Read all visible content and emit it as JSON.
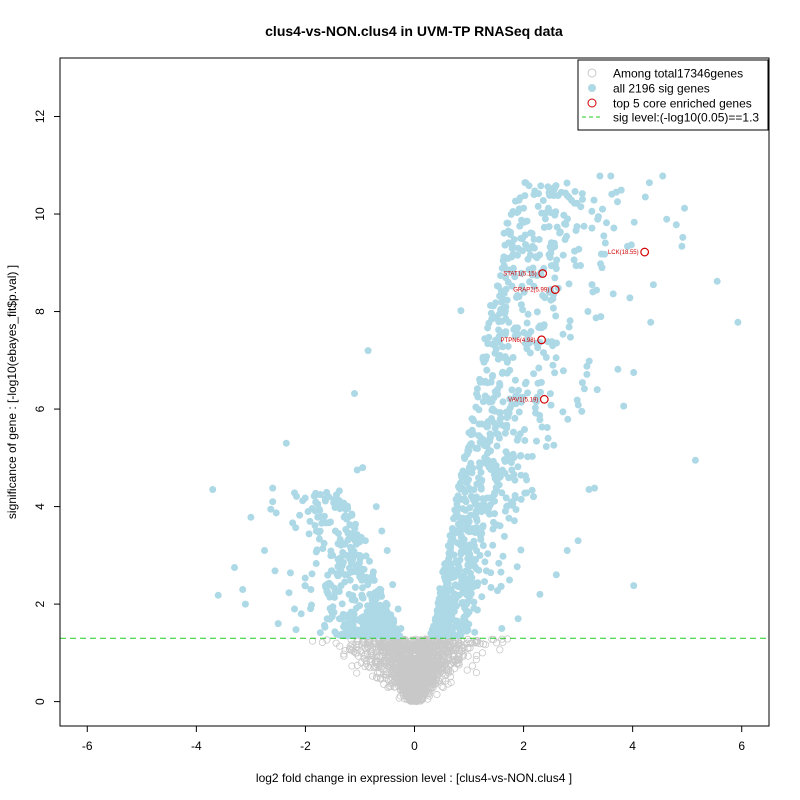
{
  "chart_data": {
    "type": "scatter",
    "title": "clus4-vs-NON.clus4 in UVM-TP RNASeq data",
    "xlabel": "log2 fold change in expression level : [clus4-vs-NON.clus4 ]",
    "ylabel": "significance of gene : [-log10(ebayes_fit$p.val) ]",
    "xlim": [
      -6.5,
      6.5
    ],
    "ylim": [
      -0.5,
      13.2
    ],
    "xticks": [
      -6,
      -4,
      -2,
      0,
      2,
      4,
      6
    ],
    "yticks": [
      0,
      2,
      4,
      6,
      8,
      10,
      12
    ],
    "sig_threshold": 1.3,
    "colors": {
      "nonsig": "#c8c8c8",
      "sig": "#add8e6",
      "core": "#d10000",
      "threshold": "#22cc22"
    },
    "legend": {
      "position": "top-right",
      "entries": [
        "Among total17346genes",
        "all 2196 sig genes",
        "top 5 core enriched genes",
        "sig level:(-log10(0.05)==1.3"
      ]
    },
    "core_genes": [
      {
        "label": "LCK(18.55)",
        "x": 4.22,
        "y": 9.22
      },
      {
        "label": "STAT1(5.15)",
        "x": 2.35,
        "y": 8.78
      },
      {
        "label": "GRAP2(5.99)",
        "x": 2.58,
        "y": 8.45
      },
      {
        "label": "PTPN6(4.98)",
        "x": 2.33,
        "y": 7.42
      },
      {
        "label": "VAV1(5.19)",
        "x": 2.38,
        "y": 6.2
      }
    ],
    "sig_genes_sample": [
      [
        5.93,
        7.78
      ],
      [
        5.55,
        8.62
      ],
      [
        5.15,
        4.95
      ],
      [
        4.92,
        9.52
      ],
      [
        4.95,
        10.12
      ],
      [
        4.8,
        9.78
      ],
      [
        4.55,
        10.78
      ],
      [
        4.38,
        8.55
      ],
      [
        4.33,
        7.78
      ],
      [
        4.2,
        11.12
      ],
      [
        4.02,
        6.75
      ],
      [
        4.02,
        2.38
      ],
      [
        3.95,
        8.28
      ],
      [
        3.7,
        10.45
      ],
      [
        3.6,
        10.78
      ],
      [
        3.4,
        10.78
      ],
      [
        3.35,
        6.4
      ],
      [
        3.3,
        4.38
      ],
      [
        3.2,
        4.35
      ],
      [
        3.05,
        10.15
      ],
      [
        2.98,
        10.22
      ],
      [
        2.88,
        10.28
      ],
      [
        2.75,
        9.8
      ],
      [
        2.6,
        8.88
      ],
      [
        2.5,
        9.2
      ],
      [
        2.4,
        9.9
      ],
      [
        2.1,
        10.58
      ],
      [
        2.0,
        10.12
      ],
      [
        1.9,
        10.05
      ],
      [
        1.95,
        9.5
      ],
      [
        1.78,
        9.12
      ],
      [
        1.75,
        8.85
      ],
      [
        1.72,
        8.6
      ],
      [
        1.6,
        7.8
      ],
      [
        1.52,
        6.4
      ],
      [
        1.45,
        4.75
      ],
      [
        1.3,
        4.9
      ],
      [
        1.22,
        4.4
      ],
      [
        1.15,
        3.9
      ],
      [
        1.05,
        3.5
      ],
      [
        0.92,
        5.0
      ],
      [
        0.85,
        8.02
      ],
      [
        0.8,
        4.22
      ],
      [
        0.65,
        3.15
      ],
      [
        0.55,
        2.55
      ],
      [
        0.45,
        2.05
      ],
      [
        0.35,
        1.55
      ],
      [
        0.3,
        1.4
      ],
      [
        2.8,
        3.1
      ],
      [
        3.0,
        3.3
      ],
      [
        2.6,
        2.6
      ],
      [
        2.3,
        2.2
      ],
      [
        1.9,
        1.7
      ],
      [
        1.6,
        1.5
      ],
      [
        -3.6,
        2.18
      ],
      [
        -3.7,
        4.35
      ],
      [
        -3.3,
        2.75
      ],
      [
        -3.15,
        2.3
      ],
      [
        -3.1,
        2.0
      ],
      [
        -3.0,
        3.78
      ],
      [
        -2.75,
        3.1
      ],
      [
        -2.6,
        4.1
      ],
      [
        -2.6,
        4.38
      ],
      [
        -2.35,
        5.3
      ],
      [
        -2.2,
        4.28
      ],
      [
        -2.05,
        4.12
      ],
      [
        -1.95,
        3.9
      ],
      [
        -1.8,
        3.5
      ],
      [
        -1.75,
        3.95
      ],
      [
        -1.5,
        3.0
      ],
      [
        -1.45,
        3.5
      ],
      [
        -1.35,
        2.7
      ],
      [
        -1.2,
        3.35
      ],
      [
        -1.1,
        6.32
      ],
      [
        -1.05,
        4.75
      ],
      [
        -0.95,
        4.8
      ],
      [
        -0.9,
        3.3
      ],
      [
        -0.85,
        7.2
      ],
      [
        -0.7,
        4.0
      ],
      [
        -0.6,
        3.5
      ],
      [
        -0.5,
        3.1
      ],
      [
        -0.4,
        2.4
      ],
      [
        -0.3,
        1.9
      ],
      [
        -0.25,
        1.5
      ],
      [
        -2.5,
        1.6
      ],
      [
        -2.2,
        1.9
      ],
      [
        -1.9,
        2.3
      ],
      [
        -1.6,
        1.7
      ],
      [
        -1.2,
        2.2
      ],
      [
        -0.8,
        1.8
      ]
    ]
  }
}
